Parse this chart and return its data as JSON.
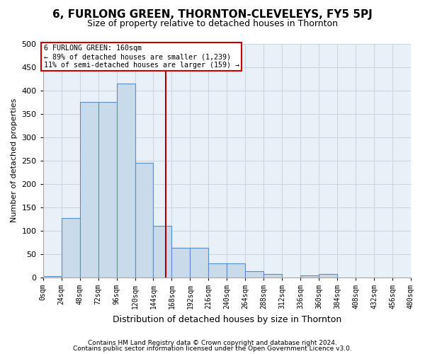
{
  "title": "6, FURLONG GREEN, THORNTON-CLEVELEYS, FY5 5PJ",
  "subtitle": "Size of property relative to detached houses in Thornton",
  "xlabel": "Distribution of detached houses by size in Thornton",
  "ylabel": "Number of detached properties",
  "footer_line1": "Contains HM Land Registry data © Crown copyright and database right 2024.",
  "footer_line2": "Contains public sector information licensed under the Open Government Licence v3.0.",
  "bin_edges": [
    0,
    24,
    48,
    72,
    96,
    120,
    144,
    168,
    192,
    216,
    240,
    264,
    288,
    312,
    336,
    360,
    384,
    408,
    432,
    456,
    480
  ],
  "bin_labels": [
    "0sqm",
    "24sqm",
    "48sqm",
    "72sqm",
    "96sqm",
    "120sqm",
    "144sqm",
    "168sqm",
    "192sqm",
    "216sqm",
    "240sqm",
    "264sqm",
    "288sqm",
    "312sqm",
    "336sqm",
    "360sqm",
    "384sqm",
    "408sqm",
    "432sqm",
    "456sqm",
    "480sqm"
  ],
  "bar_heights": [
    3,
    127,
    375,
    375,
    415,
    245,
    110,
    63,
    63,
    30,
    30,
    14,
    8,
    0,
    5,
    7,
    0,
    0,
    0,
    0
  ],
  "bar_color": "#c9daea",
  "bar_edge_color": "#5b8ec4",
  "property_value": 160,
  "vline_color": "#aa0000",
  "annotation_text_line1": "6 FURLONG GREEN: 160sqm",
  "annotation_text_line2": "← 89% of detached houses are smaller (1,239)",
  "annotation_text_line3": "11% of semi-detached houses are larger (159) →",
  "annotation_box_facecolor": "#ffffff",
  "annotation_box_edgecolor": "#cc0000",
  "ylim": [
    0,
    500
  ],
  "yticks": [
    0,
    50,
    100,
    150,
    200,
    250,
    300,
    350,
    400,
    450,
    500
  ],
  "plot_bg_color": "#e8f0f8",
  "fig_bg_color": "#ffffff",
  "grid_color": "#c8d4e0"
}
